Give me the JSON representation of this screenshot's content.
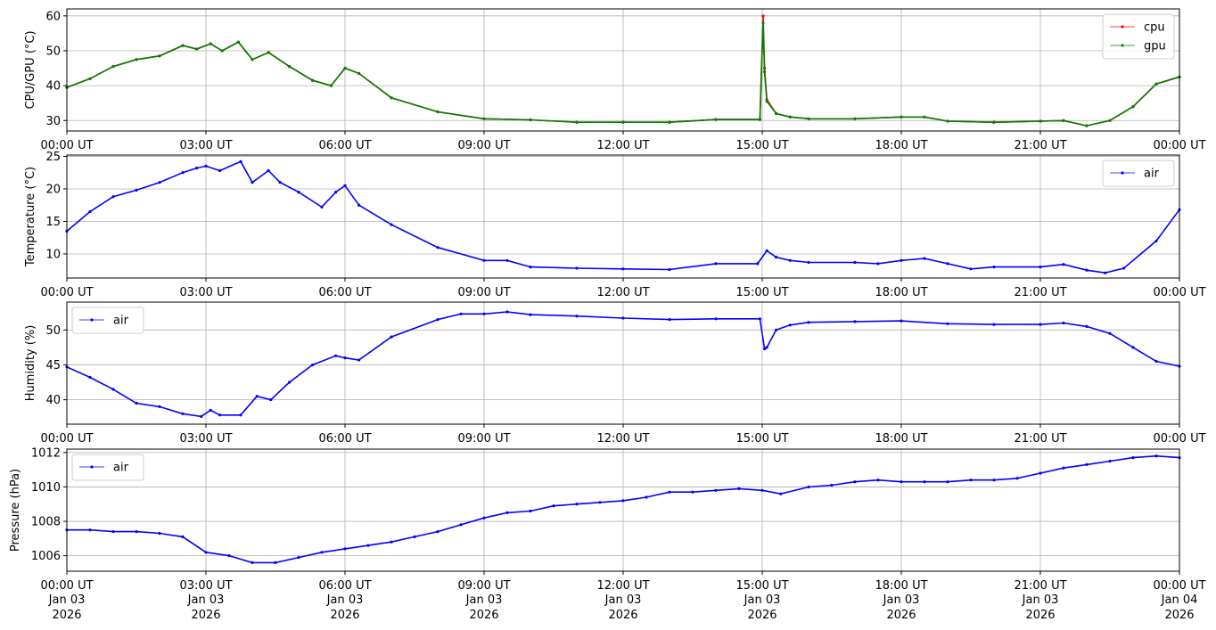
{
  "chart_data": [
    {
      "type": "line",
      "xlabel": "",
      "ylabel": "CPU/GPU (°C)",
      "ylim": [
        27,
        62
      ],
      "yticks": [
        30,
        40,
        50,
        60
      ],
      "grid": true,
      "legend": {
        "placement": "top-right",
        "entries": [
          "cpu",
          "gpu"
        ]
      },
      "series": [
        {
          "name": "cpu",
          "color": "#ff0000",
          "x_hours": [
            0,
            0.5,
            1,
            1.5,
            2,
            2.5,
            2.8,
            3.1,
            3.35,
            3.7,
            4.0,
            4.35,
            4.8,
            5.3,
            5.7,
            6.0,
            6.3,
            7,
            8,
            9,
            10,
            11,
            12,
            13,
            14,
            14.95,
            15.02,
            15.05,
            15.1,
            15.3,
            15.6,
            16,
            17,
            18,
            18.5,
            19,
            20,
            21,
            21.5,
            22,
            22.5,
            23,
            23.5,
            24
          ],
          "values": [
            39.5,
            42,
            45.5,
            47.5,
            48.5,
            51.5,
            50.5,
            52,
            50,
            52.5,
            47.5,
            49.5,
            45.5,
            41.5,
            40,
            45,
            43.5,
            36.5,
            32.5,
            30.5,
            30.2,
            29.5,
            29.5,
            29.5,
            30.3,
            30.3,
            60,
            45,
            36,
            32,
            31,
            30.5,
            30.5,
            31,
            31,
            29.8,
            29.5,
            29.8,
            30,
            28.5,
            30,
            34,
            40.5,
            42.5
          ]
        },
        {
          "name": "gpu",
          "color": "#008000",
          "x_hours": [
            0,
            0.5,
            1,
            1.5,
            2,
            2.5,
            2.8,
            3.1,
            3.35,
            3.7,
            4.0,
            4.35,
            4.8,
            5.3,
            5.7,
            6.0,
            6.3,
            7,
            8,
            9,
            10,
            11,
            12,
            13,
            14,
            14.95,
            15.02,
            15.05,
            15.1,
            15.3,
            15.6,
            16,
            17,
            18,
            18.5,
            19,
            20,
            21,
            21.5,
            22,
            22.5,
            23,
            23.5,
            24
          ],
          "values": [
            39.5,
            42,
            45.5,
            47.5,
            48.5,
            51.5,
            50.5,
            52,
            50,
            52.5,
            47.5,
            49.5,
            45.5,
            41.5,
            40,
            45,
            43.5,
            36.5,
            32.5,
            30.5,
            30.2,
            29.5,
            29.5,
            29.5,
            30.3,
            30.3,
            58,
            44,
            35.5,
            32,
            31,
            30.5,
            30.5,
            31,
            31,
            29.8,
            29.5,
            29.8,
            30,
            28.5,
            30,
            34,
            40.5,
            42.5
          ]
        }
      ]
    },
    {
      "type": "line",
      "xlabel": "",
      "ylabel": "Temperature (°C)",
      "ylim": [
        6.3,
        25.2
      ],
      "yticks": [
        10,
        15,
        20,
        25
      ],
      "grid": true,
      "legend": {
        "placement": "top-right",
        "entries": [
          "air"
        ]
      },
      "series": [
        {
          "name": "air",
          "color": "#0000ff",
          "x_hours": [
            0,
            0.5,
            1,
            1.5,
            2,
            2.5,
            2.8,
            3.0,
            3.3,
            3.75,
            4.0,
            4.35,
            4.6,
            5.0,
            5.5,
            5.8,
            6.0,
            6.3,
            7,
            8,
            9,
            9.5,
            10,
            11,
            12,
            13,
            14,
            14.9,
            15.1,
            15.3,
            15.6,
            16,
            17,
            17.5,
            18,
            18.5,
            19,
            19.5,
            20,
            21,
            21.5,
            22,
            22.4,
            22.8,
            23.5,
            24
          ],
          "values": [
            13.5,
            16.5,
            18.8,
            19.8,
            21,
            22.5,
            23.2,
            23.5,
            22.8,
            24.2,
            21,
            22.8,
            21,
            19.5,
            17.2,
            19.5,
            20.5,
            17.5,
            14.5,
            11,
            9,
            9,
            8,
            7.8,
            7.7,
            7.6,
            8.5,
            8.5,
            10.5,
            9.5,
            9,
            8.7,
            8.7,
            8.5,
            9,
            9.3,
            8.5,
            7.7,
            8,
            8,
            8.4,
            7.5,
            7.1,
            7.8,
            12,
            16.8
          ]
        }
      ]
    },
    {
      "type": "line",
      "xlabel": "",
      "ylabel": "Humidity (%)",
      "ylim": [
        36.5,
        54
      ],
      "yticks": [
        40,
        45,
        50
      ],
      "grid": true,
      "legend": {
        "placement": "top-left",
        "entries": [
          "air"
        ]
      },
      "series": [
        {
          "name": "air",
          "color": "#0000ff",
          "x_hours": [
            0,
            0.5,
            1,
            1.5,
            2,
            2.5,
            2.9,
            3.1,
            3.3,
            3.75,
            4.1,
            4.4,
            4.8,
            5.3,
            5.8,
            6.0,
            6.3,
            7,
            8,
            8.5,
            9,
            9.5,
            10,
            11,
            12,
            13,
            14,
            14.95,
            15.05,
            15.1,
            15.3,
            15.6,
            16,
            17,
            18,
            19,
            20,
            21,
            21.5,
            22,
            22.5,
            23,
            23.5,
            24
          ],
          "values": [
            44.7,
            43.2,
            41.5,
            39.5,
            39,
            38,
            37.6,
            38.5,
            37.8,
            37.8,
            40.5,
            40,
            42.5,
            45,
            46.3,
            46,
            45.7,
            49,
            51.5,
            52.3,
            52.3,
            52.6,
            52.2,
            52,
            51.7,
            51.5,
            51.6,
            51.6,
            47.3,
            47.5,
            50,
            50.7,
            51.1,
            51.2,
            51.3,
            50.9,
            50.8,
            50.8,
            51,
            50.5,
            49.5,
            47.5,
            45.5,
            44.8
          ]
        }
      ]
    },
    {
      "type": "line",
      "xlabel": "",
      "ylabel": "Pressure (hPa)",
      "ylim": [
        1005.1,
        1012.2
      ],
      "yticks": [
        1006,
        1008,
        1010,
        1012
      ],
      "grid": true,
      "legend": {
        "placement": "top-left",
        "entries": [
          "air"
        ]
      },
      "series": [
        {
          "name": "air",
          "color": "#0000ff",
          "x_hours": [
            0,
            0.5,
            1,
            1.5,
            2,
            2.5,
            3,
            3.5,
            4,
            4.5,
            5,
            5.5,
            6,
            6.5,
            7,
            7.5,
            8,
            8.5,
            9,
            9.5,
            10,
            10.5,
            11,
            11.5,
            12,
            12.5,
            13,
            13.5,
            14,
            14.5,
            15,
            15.4,
            16,
            16.5,
            17,
            17.5,
            18,
            18.5,
            19,
            19.5,
            20,
            20.5,
            21,
            21.5,
            22,
            22.5,
            23,
            23.5,
            24
          ],
          "values": [
            1007.5,
            1007.5,
            1007.4,
            1007.4,
            1007.3,
            1007.1,
            1006.2,
            1006.0,
            1005.6,
            1005.6,
            1005.9,
            1006.2,
            1006.4,
            1006.6,
            1006.8,
            1007.1,
            1007.4,
            1007.8,
            1008.2,
            1008.5,
            1008.6,
            1008.9,
            1009.0,
            1009.1,
            1009.2,
            1009.4,
            1009.7,
            1009.7,
            1009.8,
            1009.9,
            1009.8,
            1009.6,
            1010.0,
            1010.1,
            1010.3,
            1010.4,
            1010.3,
            1010.3,
            1010.3,
            1010.4,
            1010.4,
            1010.5,
            1010.8,
            1011.1,
            1011.3,
            1011.5,
            1011.7,
            1011.8,
            1011.7
          ]
        }
      ]
    }
  ],
  "x_axis": {
    "ticks_hours": [
      0,
      3,
      6,
      9,
      12,
      15,
      18,
      21,
      24
    ],
    "time_labels": [
      "00:00 UT",
      "03:00 UT",
      "06:00 UT",
      "09:00 UT",
      "12:00 UT",
      "15:00 UT",
      "18:00 UT",
      "21:00 UT",
      "00:00 UT"
    ],
    "date_labels": [
      "Jan 03",
      "Jan 03",
      "Jan 03",
      "Jan 03",
      "Jan 03",
      "Jan 03",
      "Jan 03",
      "Jan 03",
      "Jan 04"
    ],
    "year_labels": [
      "2026",
      "2026",
      "2026",
      "2026",
      "2026",
      "2026",
      "2026",
      "2026",
      "2026"
    ]
  }
}
